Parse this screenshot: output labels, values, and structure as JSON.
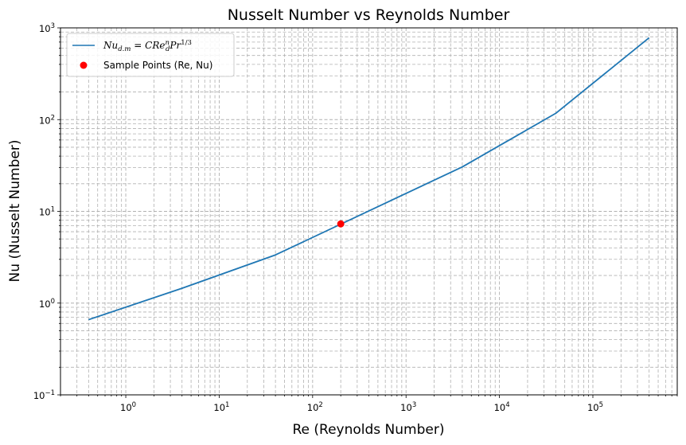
{
  "chart_data": {
    "type": "line",
    "title": "Nusselt Number vs Reynolds Number",
    "xlabel": "Re (Reynolds Number)",
    "ylabel": "Nu (Nusselt Number)",
    "xscale": "log",
    "yscale": "log",
    "xlim": [
      0.2,
      800000
    ],
    "ylim": [
      0.1,
      1000
    ],
    "x_ticks": [
      {
        "base": "10",
        "exp": "0"
      },
      {
        "base": "10",
        "exp": "1"
      },
      {
        "base": "10",
        "exp": "2"
      },
      {
        "base": "10",
        "exp": "3"
      },
      {
        "base": "10",
        "exp": "4"
      },
      {
        "base": "10",
        "exp": "5"
      }
    ],
    "y_ticks": [
      {
        "base": "10",
        "exp": "−1"
      },
      {
        "base": "10",
        "exp": "0"
      },
      {
        "base": "10",
        "exp": "1"
      },
      {
        "base": "10",
        "exp": "2"
      },
      {
        "base": "10",
        "exp": "3"
      }
    ],
    "grid": "both (major and minor), dashed",
    "legend_position": "top-left",
    "series": [
      {
        "name": "Nu_{d.m} = C Re_d^n Pr^{1/3}",
        "type": "line",
        "color": "#1f77b4",
        "x": [
          0.4,
          4,
          40,
          4000,
          40000,
          400000
        ],
        "y": [
          0.66,
          1.45,
          3.35,
          30.5,
          117,
          780
        ]
      },
      {
        "name": "Sample Points (Re, Nu)",
        "type": "scatter",
        "color": "#ff0000",
        "x": [
          200
        ],
        "y": [
          7.3
        ]
      }
    ]
  },
  "legend": {
    "line_label": {
      "nu": "Nu",
      "nu_sub": "d.m",
      "eq": " = ",
      "c": "C",
      "re": "Re",
      "re_sub": "d",
      "re_sup": "n",
      "pr": "Pr",
      "pr_sup": "1/3"
    },
    "scatter_label": "Sample Points (Re, Nu)"
  }
}
